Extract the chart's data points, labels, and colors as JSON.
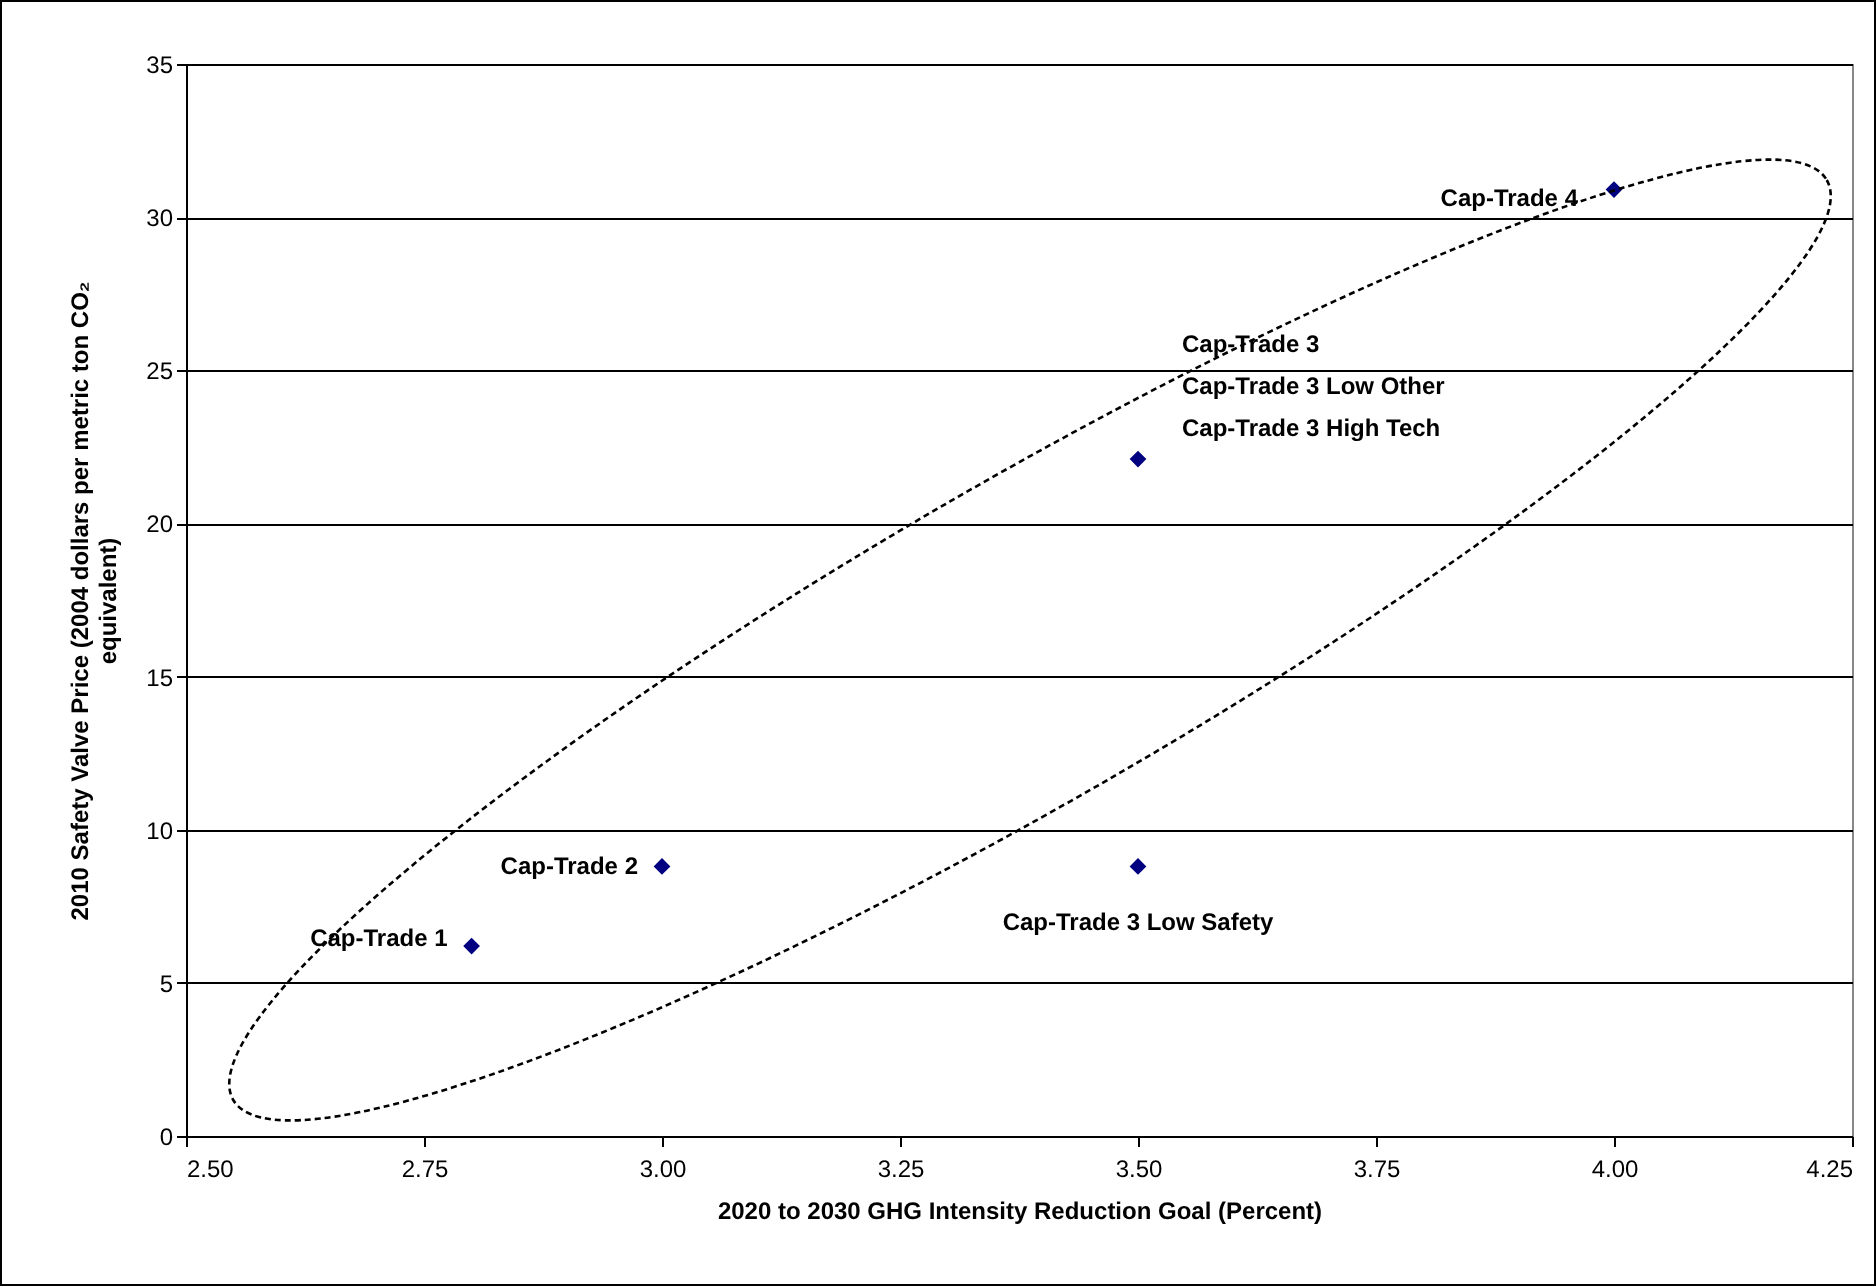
{
  "chart_data": {
    "type": "scatter",
    "xlabel": "2020 to 2030 GHG Intensity Reduction Goal (Percent)",
    "ylabel": "2010 Safety Valve Price (2004 dollars per metric ton CO₂ equivalent)",
    "x": [
      2.8,
      3.0,
      3.5,
      3.5,
      4.0
    ],
    "values": [
      6.2,
      8.8,
      22.1,
      8.8,
      30.9
    ],
    "color": "#000080",
    "marker": "diamond",
    "xlim": [
      2.5,
      4.25
    ],
    "xticks": [
      {
        "value": 2.5,
        "label": "2.50"
      },
      {
        "value": 2.75,
        "label": "2.75"
      },
      {
        "value": 3.0,
        "label": "3.00"
      },
      {
        "value": 3.25,
        "label": "3.25"
      },
      {
        "value": 3.5,
        "label": "3.50"
      },
      {
        "value": 3.75,
        "label": "3.75"
      },
      {
        "value": 4.0,
        "label": "4.00"
      },
      {
        "value": 4.25,
        "label": "4.25"
      }
    ],
    "ylim": [
      0,
      35
    ],
    "yticks": [
      0,
      5,
      10,
      15,
      20,
      25,
      30,
      35
    ],
    "grid": "y",
    "annotations": [
      {
        "text": "Cap-Trade 1",
        "x": 2.8,
        "y": 6.2
      },
      {
        "text": "Cap-Trade 2",
        "x": 3.0,
        "y": 8.8
      },
      "Cap-Trade 3",
      "Cap-Trade 3 Low Other",
      "Cap-Trade 3 High Tech",
      {
        "text": "Cap-Trade 3 Low Safety",
        "x": 3.5,
        "y": 8.8
      },
      {
        "text": "Cap-Trade 4",
        "x": 4.0,
        "y": 30.9
      }
    ]
  }
}
